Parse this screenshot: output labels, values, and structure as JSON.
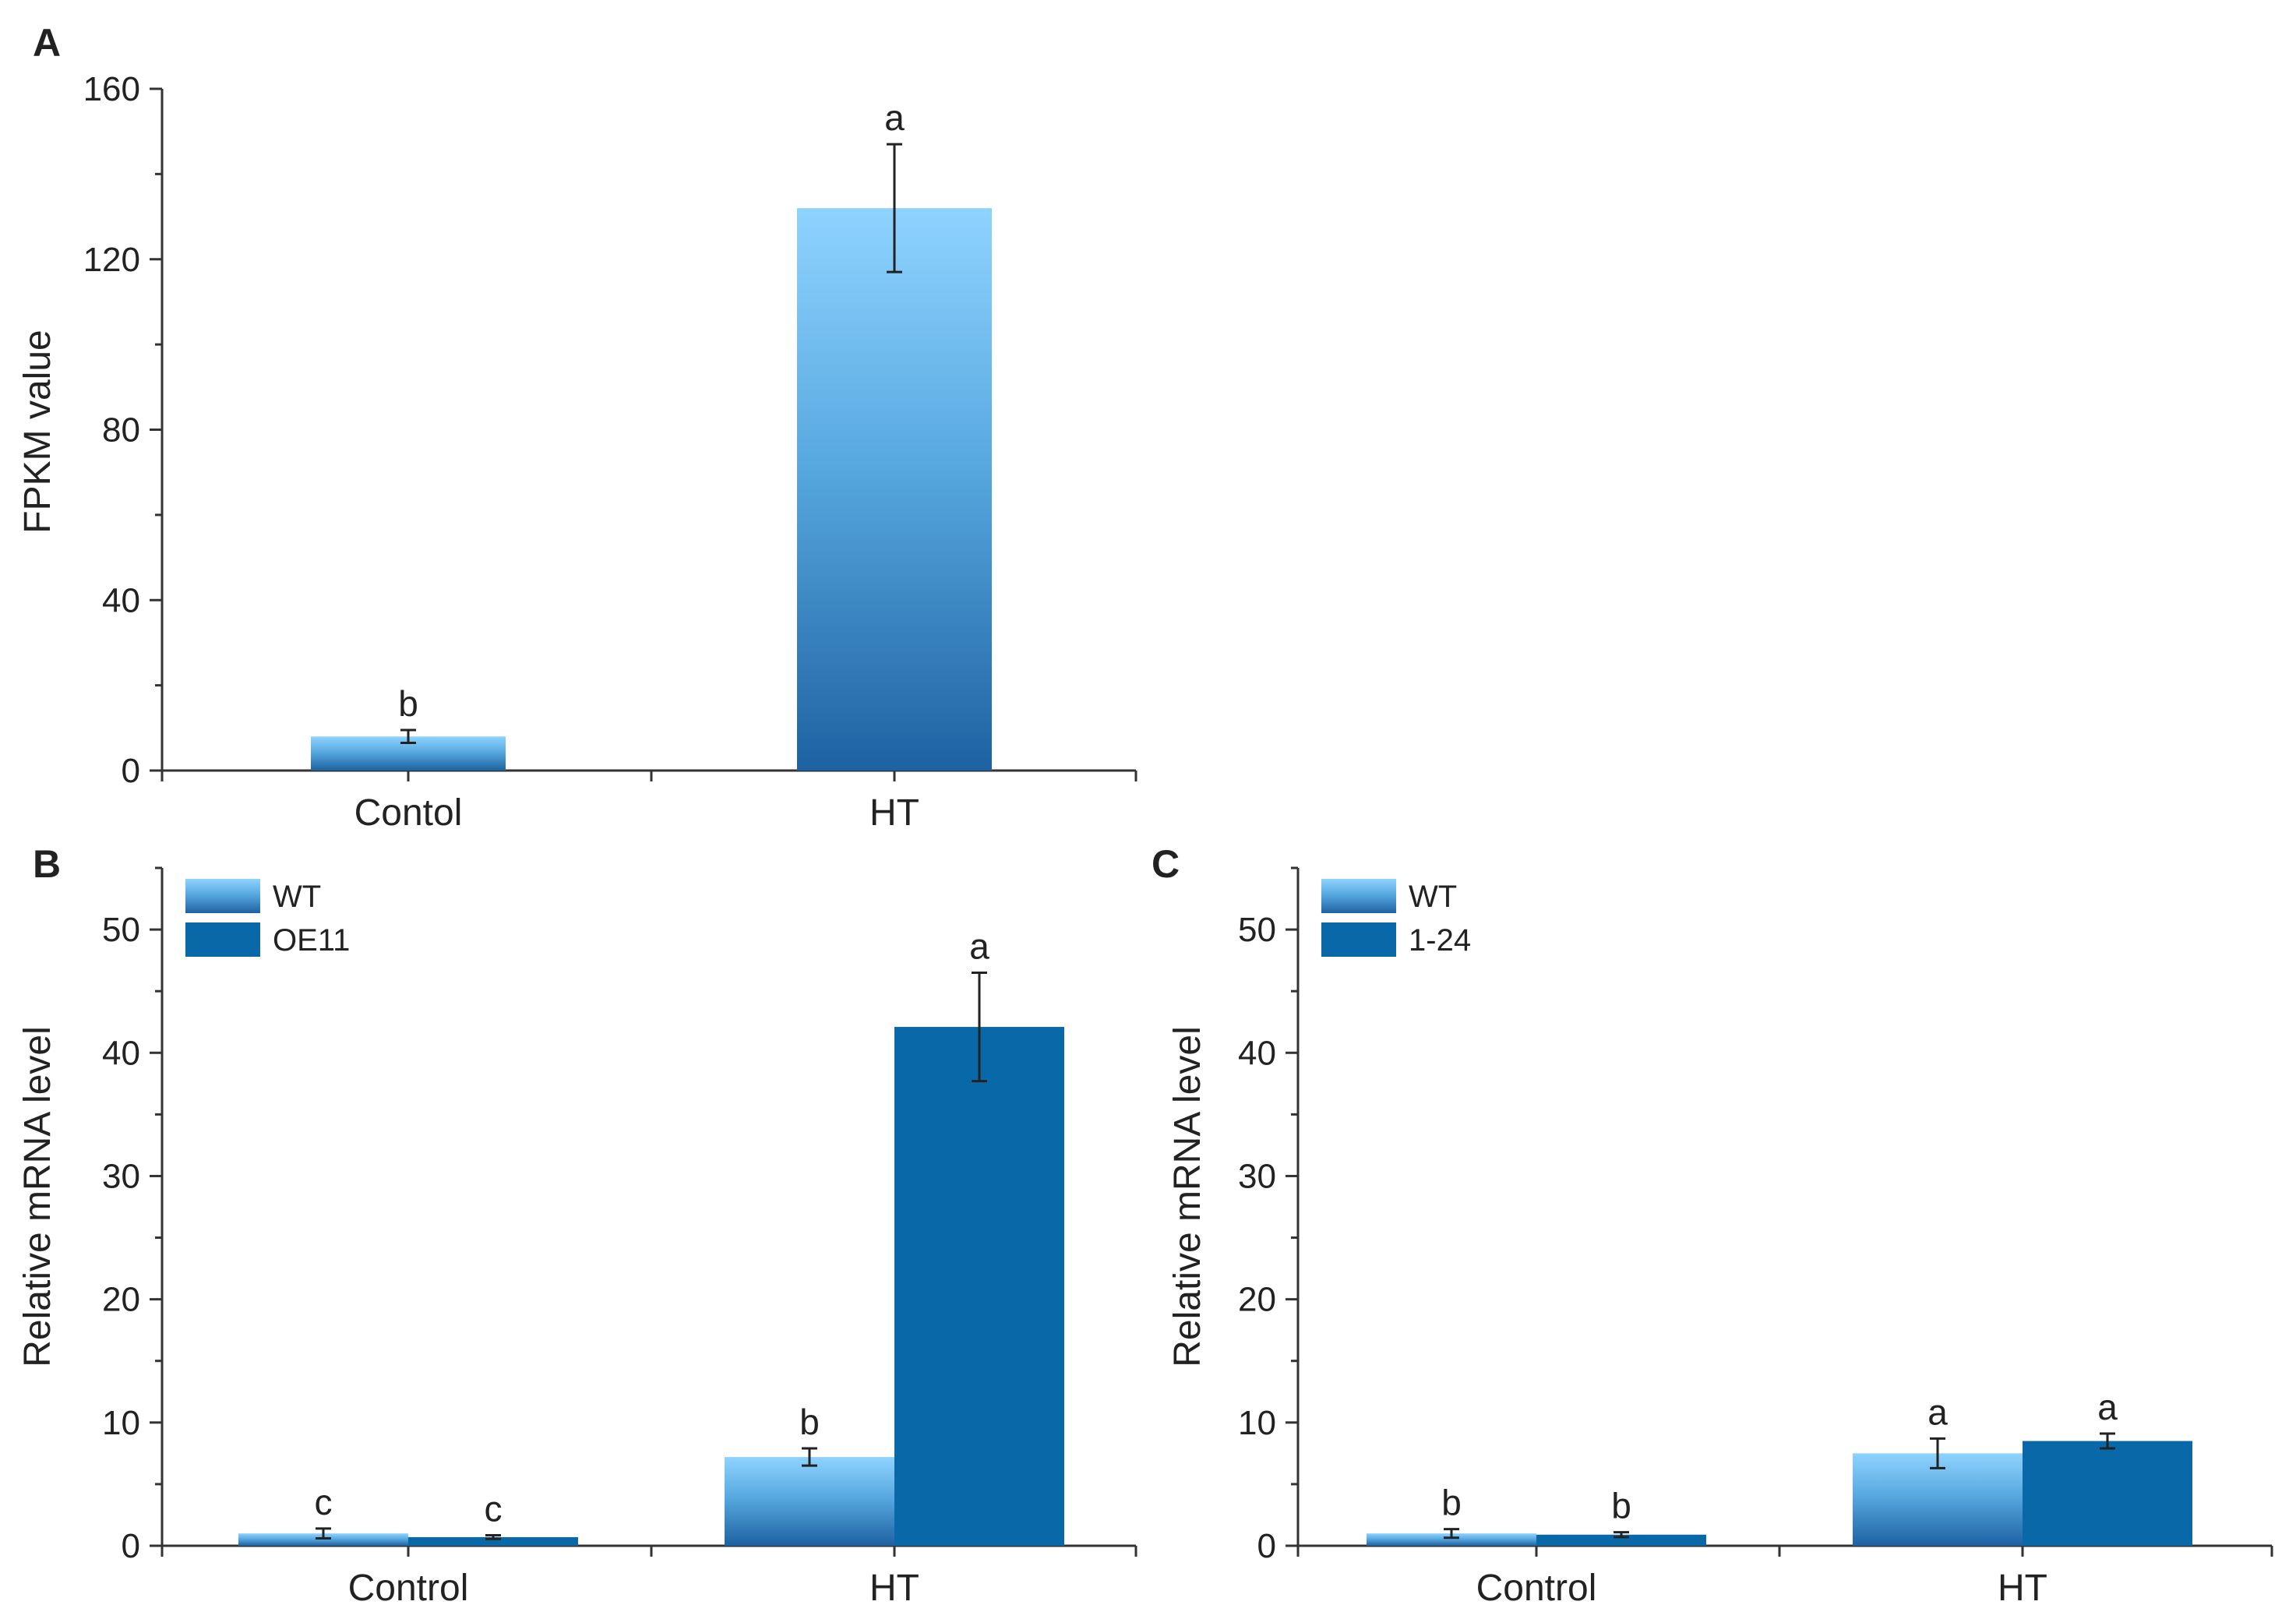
{
  "chart_data": [
    {
      "id": "A",
      "panel_label": "A",
      "type": "bar",
      "categories": [
        "Contol",
        "HT"
      ],
      "series": [
        {
          "name": "",
          "values": [
            8,
            132
          ],
          "errors": [
            1.5,
            15
          ],
          "letters": [
            "b",
            "a"
          ],
          "style": "gradient"
        }
      ],
      "ylabel": "FPKM value",
      "xlabel": "",
      "ylim": [
        0,
        160
      ],
      "yticks": [
        0,
        40,
        80,
        120,
        160
      ],
      "legend": false
    },
    {
      "id": "B",
      "panel_label": "B",
      "type": "bar",
      "categories": [
        "Control",
        "HT"
      ],
      "series": [
        {
          "name": "WT",
          "values": [
            1.0,
            7.2
          ],
          "errors": [
            0.4,
            0.7
          ],
          "letters": [
            "c",
            "b"
          ],
          "style": "gradient"
        },
        {
          "name": "OE11",
          "values": [
            0.7,
            42.1
          ],
          "errors": [
            0.15,
            4.4
          ],
          "letters": [
            "c",
            "a"
          ],
          "style": "solid"
        }
      ],
      "ylabel": "Relative mRNA level",
      "xlabel": "",
      "ylim": [
        0,
        55
      ],
      "yticks": [
        0,
        10,
        20,
        30,
        40,
        50
      ],
      "legend": true,
      "legend_position": "top-left"
    },
    {
      "id": "C",
      "panel_label": "C",
      "type": "bar",
      "categories": [
        "Control",
        "HT"
      ],
      "series": [
        {
          "name": "WT",
          "values": [
            1.0,
            7.5
          ],
          "errors": [
            0.35,
            1.2
          ],
          "letters": [
            "b",
            "a"
          ],
          "style": "gradient"
        },
        {
          "name": "1-24",
          "values": [
            0.9,
            8.5
          ],
          "errors": [
            0.2,
            0.6
          ],
          "letters": [
            "b",
            "a"
          ],
          "style": "solid"
        }
      ],
      "ylabel": "Relative mRNA level",
      "xlabel": "",
      "ylim": [
        0,
        55
      ],
      "yticks": [
        0,
        10,
        20,
        30,
        40,
        50
      ],
      "legend": true,
      "legend_position": "top-left"
    }
  ],
  "colors": {
    "gradient_top": "#8fd3ff",
    "gradient_mid": "#58a9e0",
    "gradient_bottom": "#1d62a2",
    "solid": "#0868a8",
    "axis": "#333333",
    "text": "#222222"
  }
}
